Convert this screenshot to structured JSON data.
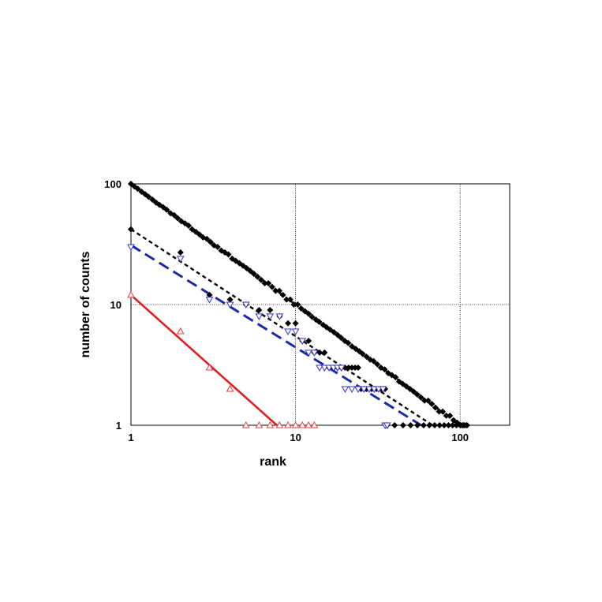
{
  "chart_data": {
    "type": "scatter",
    "xlabel": "rank",
    "ylabel": "number of counts",
    "x_scale": "log",
    "y_scale": "log",
    "xlim": [
      1,
      200
    ],
    "ylim": [
      1,
      100
    ],
    "x_ticks": [
      1,
      10,
      100
    ],
    "y_ticks": [
      1,
      10,
      100
    ],
    "x_tick_labels": [
      "1",
      "10",
      "100"
    ],
    "y_tick_labels": [
      "1",
      "10",
      "100"
    ],
    "grid": true,
    "series": [
      {
        "marker": "filled-diamond",
        "color": "#000000",
        "points": [
          [
            1,
            100
          ],
          [
            1.05,
            95
          ],
          [
            1.1,
            91
          ],
          [
            1.16,
            86
          ],
          [
            1.22,
            82
          ],
          [
            1.28,
            78
          ],
          [
            1.35,
            74
          ],
          [
            1.42,
            70
          ],
          [
            1.49,
            67
          ],
          [
            1.57,
            64
          ],
          [
            1.65,
            61
          ],
          [
            1.74,
            57
          ],
          [
            1.83,
            55
          ],
          [
            1.92,
            52
          ],
          [
            2.02,
            49
          ],
          [
            2.13,
            47
          ],
          [
            2.24,
            45
          ],
          [
            2.35,
            42
          ],
          [
            2.48,
            40
          ],
          [
            2.61,
            38
          ],
          [
            2.74,
            36
          ],
          [
            2.89,
            35
          ],
          [
            3.04,
            33
          ],
          [
            3.19,
            31
          ],
          [
            3.36,
            30
          ],
          [
            3.54,
            28
          ],
          [
            3.72,
            27
          ],
          [
            3.91,
            26
          ],
          [
            4.12,
            24
          ],
          [
            4.33,
            23
          ],
          [
            4.56,
            22
          ],
          [
            4.8,
            21
          ],
          [
            5.05,
            20
          ],
          [
            5.31,
            19
          ],
          [
            5.58,
            18
          ],
          [
            5.87,
            17
          ],
          [
            6.18,
            16
          ],
          [
            6.5,
            15
          ],
          [
            6.84,
            15
          ],
          [
            7.2,
            14
          ],
          [
            7.57,
            13
          ],
          [
            7.97,
            13
          ],
          [
            8.38,
            12
          ],
          [
            8.82,
            11
          ],
          [
            9.28,
            11
          ],
          [
            9.76,
            10
          ],
          [
            10.3,
            10
          ],
          [
            10.8,
            9.3
          ],
          [
            11.4,
            8.8
          ],
          [
            12,
            8.4
          ],
          [
            12.6,
            7.9
          ],
          [
            13.3,
            7.5
          ],
          [
            13.9,
            7.2
          ],
          [
            14.7,
            6.8
          ],
          [
            15.4,
            6.5
          ],
          [
            16.2,
            6.2
          ],
          [
            17.1,
            5.9
          ],
          [
            18,
            5.6
          ],
          [
            18.9,
            5.3
          ],
          [
            19.9,
            5
          ],
          [
            20.9,
            4.8
          ],
          [
            22,
            4.5
          ],
          [
            23.2,
            4.3
          ],
          [
            24.4,
            4.1
          ],
          [
            25.6,
            3.9
          ],
          [
            27,
            3.7
          ],
          [
            28.4,
            3.5
          ],
          [
            29.8,
            3.4
          ],
          [
            31.4,
            3.2
          ],
          [
            33,
            3
          ],
          [
            34.8,
            2.9
          ],
          [
            36.6,
            2.7
          ],
          [
            38.5,
            2.6
          ],
          [
            40.5,
            2.5
          ],
          [
            42.6,
            2.3
          ],
          [
            44.8,
            2.2
          ],
          [
            47.1,
            2.1
          ],
          [
            49.6,
            2
          ],
          [
            52.2,
            1.9
          ],
          [
            54.9,
            1.8
          ],
          [
            57.8,
            1.7
          ],
          [
            60.8,
            1.6
          ],
          [
            63.9,
            1.6
          ],
          [
            67.3,
            1.5
          ],
          [
            70.8,
            1.4
          ],
          [
            74.5,
            1.3
          ],
          [
            78.3,
            1.3
          ],
          [
            82.4,
            1.2
          ],
          [
            86.7,
            1.2
          ],
          [
            91.2,
            1.1
          ],
          [
            96,
            1.05
          ],
          [
            101,
            1
          ],
          [
            104,
            1
          ],
          [
            107,
            1
          ],
          [
            110,
            1
          ]
        ]
      },
      {
        "marker": "filled-diamond",
        "color": "#000000",
        "points": [
          [
            1,
            42
          ],
          [
            2,
            27
          ],
          [
            3,
            12
          ],
          [
            4,
            11
          ],
          [
            5,
            10
          ],
          [
            6,
            9
          ],
          [
            7,
            9
          ],
          [
            8,
            8
          ],
          [
            9,
            7
          ],
          [
            10,
            7
          ],
          [
            11,
            5
          ],
          [
            12,
            5
          ],
          [
            13,
            4
          ],
          [
            14,
            4
          ],
          [
            15,
            4
          ],
          [
            16,
            3
          ],
          [
            17,
            3
          ],
          [
            18,
            3
          ],
          [
            19,
            3
          ],
          [
            20,
            3
          ],
          [
            21,
            3
          ],
          [
            22,
            3
          ],
          [
            23,
            3
          ],
          [
            24,
            3
          ],
          [
            25,
            2
          ],
          [
            26,
            2
          ],
          [
            27,
            2
          ],
          [
            28,
            2
          ],
          [
            29,
            2
          ],
          [
            30,
            2
          ],
          [
            31,
            2
          ],
          [
            32,
            2
          ],
          [
            33,
            2
          ],
          [
            34,
            2
          ],
          [
            35,
            2
          ],
          [
            36,
            1
          ],
          [
            40,
            1
          ],
          [
            45,
            1
          ],
          [
            50,
            1
          ],
          [
            55,
            1
          ],
          [
            60,
            1
          ],
          [
            65,
            1
          ],
          [
            70,
            1
          ],
          [
            75,
            1
          ],
          [
            80,
            1
          ],
          [
            85,
            1
          ],
          [
            90,
            1
          ],
          [
            95,
            1
          ],
          [
            100,
            1
          ],
          [
            105,
            1
          ],
          [
            110,
            1
          ]
        ]
      },
      {
        "marker": "open-triangle-down",
        "color": "#3333cc",
        "points": [
          [
            1,
            30
          ],
          [
            2,
            24
          ],
          [
            3,
            11
          ],
          [
            4,
            10
          ],
          [
            5,
            10
          ],
          [
            6,
            8
          ],
          [
            7,
            8
          ],
          [
            8,
            8
          ],
          [
            9,
            6
          ],
          [
            10,
            6
          ],
          [
            11,
            5
          ],
          [
            12,
            4
          ],
          [
            13,
            4
          ],
          [
            14,
            3
          ],
          [
            15,
            3
          ],
          [
            16,
            3
          ],
          [
            17,
            3
          ],
          [
            18,
            3
          ],
          [
            19,
            3
          ],
          [
            20,
            2
          ],
          [
            22,
            2
          ],
          [
            24,
            2
          ],
          [
            26,
            2
          ],
          [
            28,
            2
          ],
          [
            30,
            2
          ],
          [
            32,
            2
          ],
          [
            34,
            2
          ],
          [
            35,
            1
          ],
          [
            36,
            1
          ]
        ]
      },
      {
        "marker": "open-triangle-up",
        "color": "#e04040",
        "points": [
          [
            1,
            12
          ],
          [
            2,
            6
          ],
          [
            3,
            3
          ],
          [
            4,
            2
          ],
          [
            5,
            1
          ],
          [
            6,
            1
          ],
          [
            7,
            1
          ],
          [
            8,
            1
          ],
          [
            9,
            1
          ],
          [
            10,
            1
          ],
          [
            11,
            1
          ],
          [
            12,
            1
          ],
          [
            13,
            1
          ]
        ]
      }
    ],
    "fit_lines": [
      {
        "style": "dotted",
        "color": "#000000",
        "from": [
          1,
          100
        ],
        "to": [
          100,
          1
        ]
      },
      {
        "style": "short-dash",
        "color": "#000000",
        "from": [
          1,
          42
        ],
        "to": [
          68,
          1
        ]
      },
      {
        "style": "long-dash",
        "color": "#1a2aa8",
        "from": [
          1,
          31
        ],
        "to": [
          58,
          1
        ]
      },
      {
        "style": "solid",
        "color": "#e02020",
        "from": [
          1,
          12
        ],
        "to": [
          7.7,
          1
        ]
      }
    ]
  }
}
